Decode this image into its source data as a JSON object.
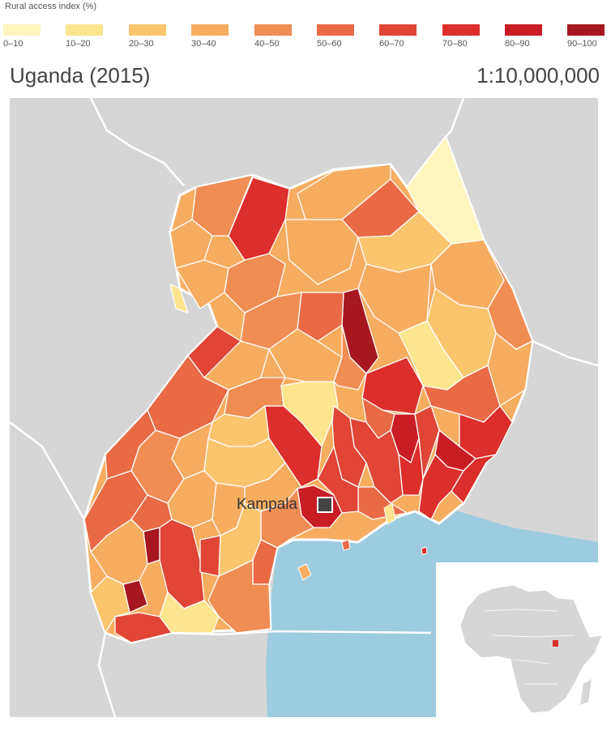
{
  "legend": {
    "title": "Rural access index (%)",
    "bins": [
      {
        "label": "0–10",
        "color": "#fff5bd"
      },
      {
        "label": "10–20",
        "color": "#fde48e"
      },
      {
        "label": "20–30",
        "color": "#fbc56e"
      },
      {
        "label": "30–40",
        "color": "#f7ad60"
      },
      {
        "label": "40–50",
        "color": "#f08d55"
      },
      {
        "label": "50–60",
        "color": "#e96a45"
      },
      {
        "label": "60–70",
        "color": "#e04535"
      },
      {
        "label": "70–80",
        "color": "#dc2e2a"
      },
      {
        "label": "80–90",
        "color": "#c81d25"
      },
      {
        "label": "90–100",
        "color": "#a6171f"
      }
    ]
  },
  "map": {
    "title": "Uganda (2015)",
    "scale": "1:10,000,000",
    "city_label": "Kampala",
    "colors": {
      "neighbors": "#d6d6d6",
      "lake": "#9dcbdf",
      "borders": "#ffffff",
      "city_marker": "#444444",
      "inset_land": "#d6d6d6",
      "inset_highlight": "#dc2e2a"
    }
  }
}
